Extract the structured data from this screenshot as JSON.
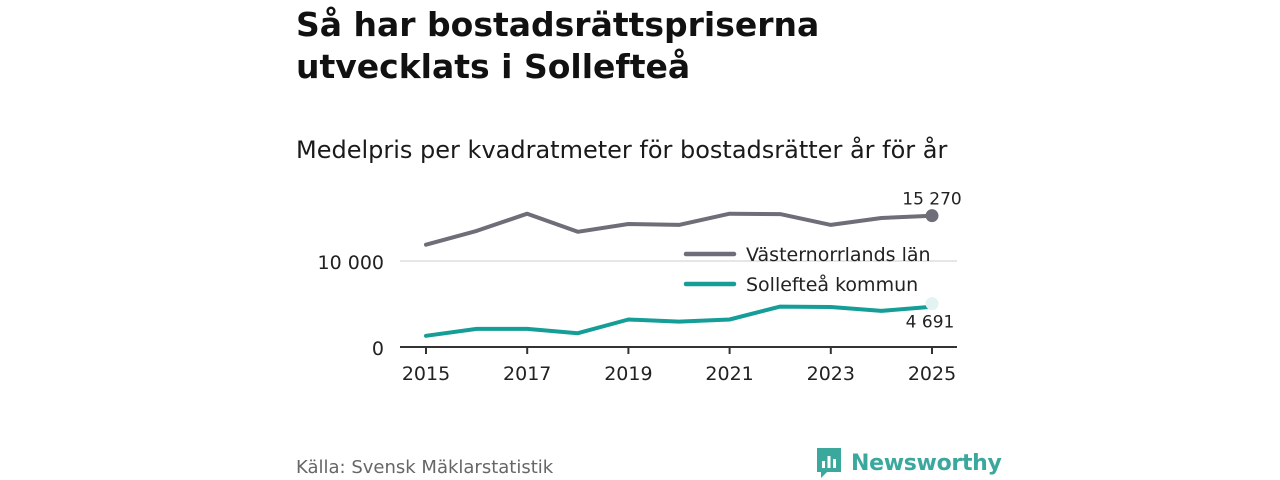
{
  "header": {
    "title": "Så har bostadsrättspriserna utvecklats i Sollefteå",
    "subtitle": "Medelpris per kvadratmeter för bostadsrätter år för år"
  },
  "footer": {
    "source": "Källa: Svensk Mäklarstatistik",
    "logo_text": "Newsworthy"
  },
  "colors": {
    "series_1": "#6e6d78",
    "series_2": "#159d97",
    "logo": "#3ba89e"
  },
  "chart_data": {
    "type": "line",
    "x": [
      2015,
      2016,
      2017,
      2018,
      2019,
      2020,
      2021,
      2022,
      2023,
      2024,
      2025
    ],
    "xticks": [
      "2015",
      "2017",
      "2019",
      "2021",
      "2023",
      "2025"
    ],
    "yticks": [
      "0",
      "10 000"
    ],
    "ylim": [
      0,
      16500
    ],
    "series": [
      {
        "name": "Västernorrlands län",
        "values": [
          11900,
          13500,
          15500,
          13400,
          14300,
          14200,
          15500,
          15450,
          14200,
          15000,
          15270
        ],
        "end_label": "15 270"
      },
      {
        "name": "Sollefteå kommun",
        "values": [
          1300,
          2100,
          2100,
          1600,
          3200,
          2950,
          3200,
          4700,
          4650,
          4200,
          4691
        ],
        "end_label": "4 691"
      }
    ],
    "legend_position": "center-right"
  }
}
